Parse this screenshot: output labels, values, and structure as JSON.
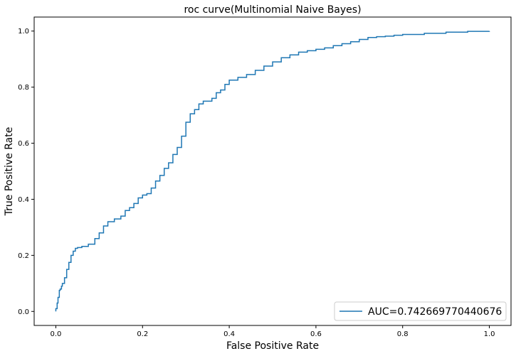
{
  "chart_data": {
    "type": "line",
    "title": "roc curve(Multinomial Naive Bayes)",
    "xlabel": "False Positive Rate",
    "ylabel": "True Positive Rate",
    "xlim": [
      -0.05,
      1.05
    ],
    "ylim": [
      -0.05,
      1.05
    ],
    "xticks": [
      0.0,
      0.2,
      0.4,
      0.6,
      0.8,
      1.0
    ],
    "xtick_labels": [
      "0.0",
      "0.2",
      "0.4",
      "0.6",
      "0.8",
      "1.0"
    ],
    "yticks": [
      0.0,
      0.2,
      0.4,
      0.6,
      0.8,
      1.0
    ],
    "ytick_labels": [
      "0.0",
      "0.2",
      "0.4",
      "0.6",
      "0.8",
      "1.0"
    ],
    "grid": false,
    "legend_position": "lower-right",
    "series": [
      {
        "name": "AUC=0.742669770440676",
        "color": "#1f77b4",
        "x": [
          0.0,
          0.0,
          0.003,
          0.005,
          0.008,
          0.01,
          0.013,
          0.015,
          0.02,
          0.025,
          0.03,
          0.035,
          0.04,
          0.045,
          0.05,
          0.06,
          0.075,
          0.09,
          0.1,
          0.11,
          0.12,
          0.135,
          0.15,
          0.16,
          0.17,
          0.18,
          0.19,
          0.2,
          0.21,
          0.22,
          0.23,
          0.24,
          0.25,
          0.26,
          0.27,
          0.28,
          0.29,
          0.3,
          0.31,
          0.32,
          0.33,
          0.34,
          0.36,
          0.37,
          0.38,
          0.39,
          0.4,
          0.42,
          0.44,
          0.46,
          0.48,
          0.5,
          0.52,
          0.54,
          0.56,
          0.58,
          0.6,
          0.62,
          0.64,
          0.66,
          0.68,
          0.7,
          0.72,
          0.74,
          0.76,
          0.78,
          0.8,
          0.85,
          0.9,
          0.95,
          1.0
        ],
        "y": [
          0.0,
          0.01,
          0.03,
          0.05,
          0.075,
          0.08,
          0.09,
          0.1,
          0.12,
          0.15,
          0.175,
          0.2,
          0.215,
          0.225,
          0.228,
          0.232,
          0.24,
          0.26,
          0.28,
          0.305,
          0.32,
          0.33,
          0.34,
          0.36,
          0.37,
          0.385,
          0.405,
          0.415,
          0.42,
          0.44,
          0.465,
          0.485,
          0.51,
          0.53,
          0.56,
          0.585,
          0.625,
          0.675,
          0.705,
          0.72,
          0.74,
          0.75,
          0.76,
          0.78,
          0.79,
          0.81,
          0.825,
          0.835,
          0.845,
          0.86,
          0.875,
          0.89,
          0.905,
          0.915,
          0.925,
          0.93,
          0.935,
          0.94,
          0.948,
          0.955,
          0.962,
          0.97,
          0.977,
          0.98,
          0.982,
          0.985,
          0.988,
          0.992,
          0.996,
          0.999,
          1.0
        ]
      }
    ]
  }
}
